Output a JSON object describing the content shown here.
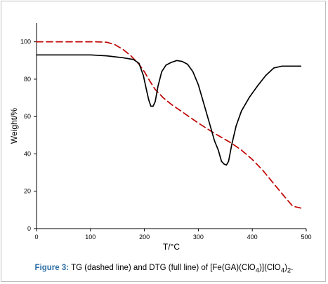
{
  "chart_data": {
    "type": "line",
    "xlabel": "T/°C",
    "ylabel": "Weight/%",
    "xlim": [
      0,
      500
    ],
    "ylim": [
      0,
      110
    ],
    "xticks": [
      0,
      100,
      200,
      300,
      400,
      500
    ],
    "yticks": [
      0,
      20,
      40,
      60,
      80,
      100
    ],
    "grid": false,
    "series": [
      {
        "style": "dashed",
        "color": "#c00000",
        "x": [
          0,
          60,
          110,
          130,
          145,
          160,
          175,
          190,
          200,
          210,
          220,
          235,
          250,
          270,
          300,
          330,
          360,
          380,
          400,
          420,
          440,
          460,
          475,
          490
        ],
        "y": [
          100,
          100,
          100,
          99.8,
          98.5,
          96,
          92.5,
          88,
          84,
          79,
          74.5,
          70,
          66.5,
          62.5,
          56.5,
          51,
          46,
          42,
          37,
          31,
          24,
          17,
          12,
          11
        ]
      },
      {
        "style": "solid",
        "color": "#000000",
        "x": [
          0,
          50,
          100,
          130,
          160,
          180,
          190,
          198,
          204,
          208,
          212,
          216,
          220,
          225,
          232,
          240,
          250,
          260,
          270,
          280,
          290,
          300,
          310,
          320,
          330,
          337,
          343,
          348,
          352,
          356,
          362,
          370,
          380,
          395,
          410,
          425,
          440,
          455,
          470,
          490
        ],
        "y": [
          93,
          93,
          93,
          92.5,
          91.5,
          90.5,
          88.5,
          82,
          74,
          69,
          65.5,
          65.5,
          68,
          76,
          84,
          87.5,
          89,
          90,
          89.5,
          88,
          84,
          77,
          67,
          57,
          47,
          42,
          36,
          34.5,
          34,
          36,
          45,
          55,
          63,
          70.5,
          76.5,
          82,
          86,
          87,
          87,
          87
        ]
      }
    ]
  },
  "caption": {
    "figure_label": "Figure 3:",
    "text_before": " TG (dashed line) and DTG (full line) of [Fe(GA)(ClO",
    "sub1": "4",
    "text_mid": ")](ClO",
    "sub2": "4",
    "text_after": ")",
    "sub3": "2",
    "text_end": "."
  }
}
